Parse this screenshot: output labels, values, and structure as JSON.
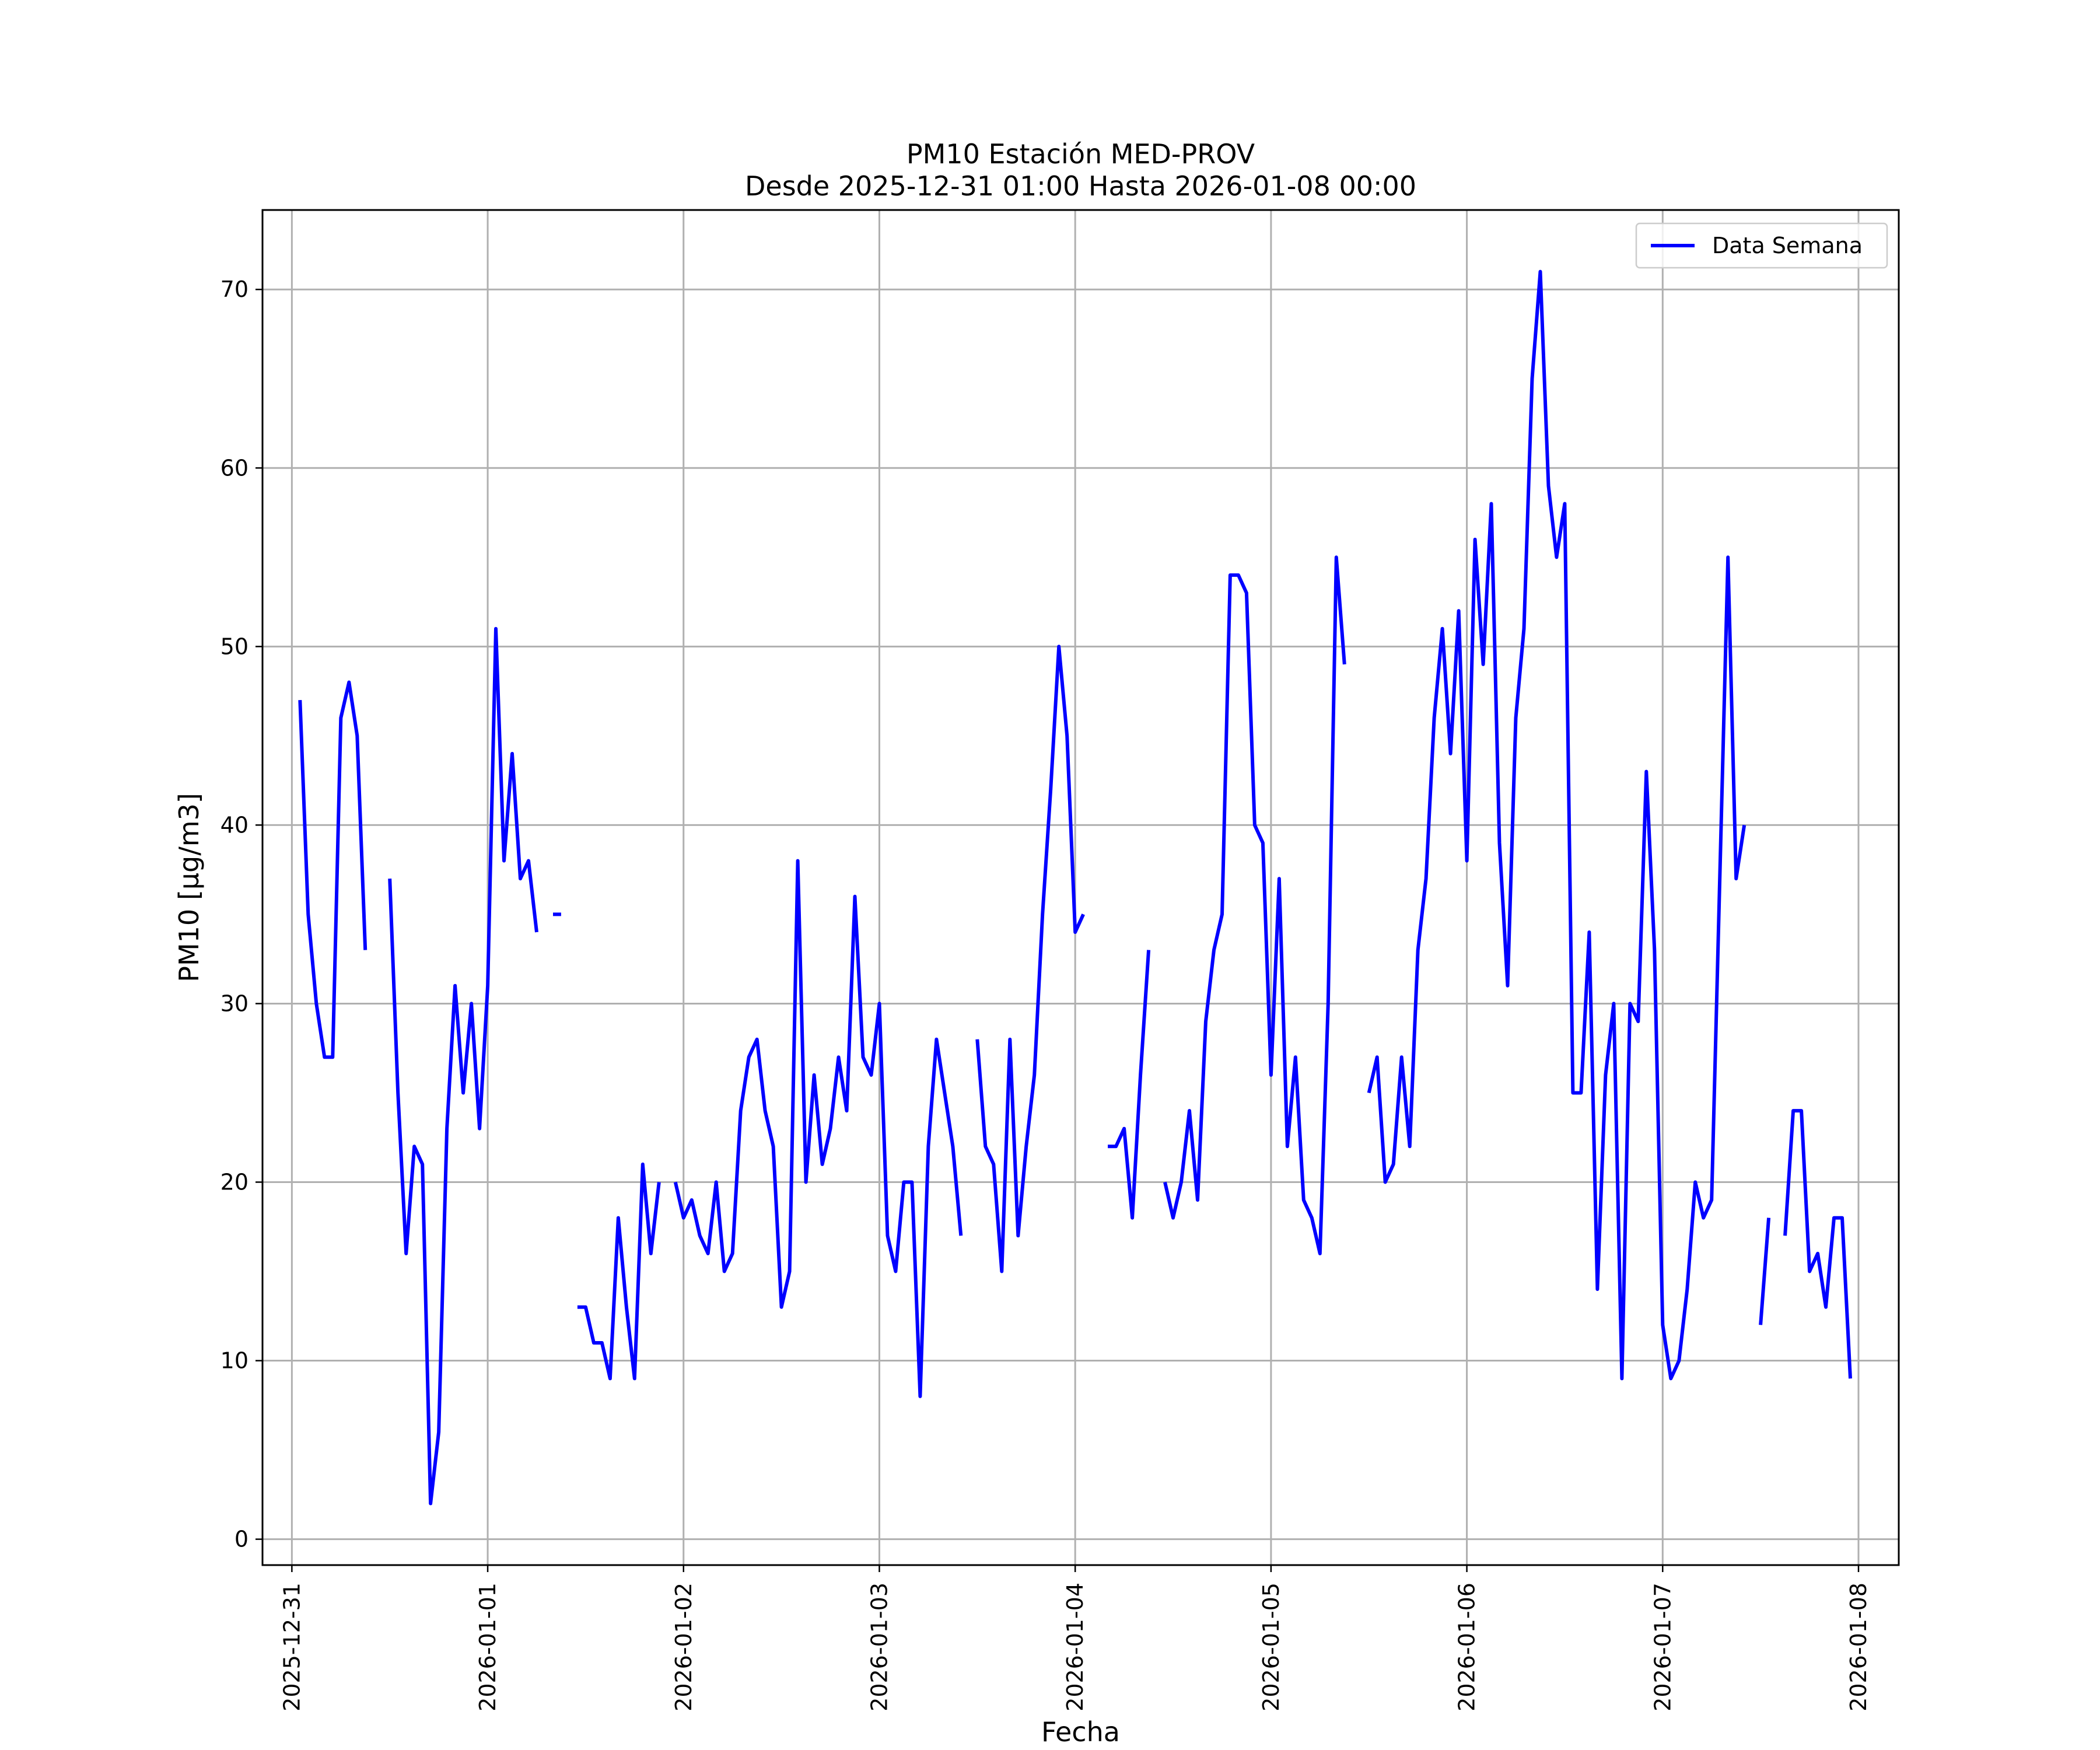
{
  "chart_data": {
    "type": "line",
    "title": "PM10 Estación MED-PROV",
    "subtitle": "Desde 2025-12-31 01:00 Hasta 2026-01-08 00:00",
    "xlabel": "Fecha",
    "ylabel": "PM10 [μg/m3]",
    "xlim": [
      "2025-12-30T20:24",
      "2026-01-08T04:56"
    ],
    "ylim": [
      -1.45,
      74.45
    ],
    "grid": true,
    "legend_position": "top-right",
    "x_tick_labels": [
      "2025-12-31",
      "2026-01-01",
      "2026-01-02",
      "2026-01-03",
      "2026-01-04",
      "2026-01-05",
      "2026-01-06",
      "2026-01-07",
      "2026-01-08"
    ],
    "y_ticks": [
      0,
      10,
      20,
      30,
      40,
      50,
      60,
      70
    ],
    "series": [
      {
        "name": "Data Semana",
        "color": "#0000ff",
        "start": "2025-12-31T01:00",
        "step_hours": 1,
        "values": [
          47,
          35,
          30,
          27,
          27,
          46,
          48,
          45,
          33,
          null,
          null,
          37,
          25,
          16,
          22,
          21,
          2,
          6,
          23,
          31,
          25,
          30,
          23,
          31,
          51,
          38,
          44,
          37,
          38,
          34,
          null,
          35,
          35,
          null,
          13,
          13,
          11,
          11,
          9,
          18,
          13,
          9,
          21,
          16,
          20,
          null,
          20,
          18,
          19,
          17,
          16,
          20,
          15,
          16,
          24,
          27,
          28,
          24,
          22,
          13,
          15,
          38,
          20,
          26,
          21,
          23,
          27,
          24,
          36,
          27,
          26,
          30,
          17,
          15,
          20,
          20,
          8,
          22,
          28,
          25,
          22,
          17,
          null,
          28,
          22,
          21,
          15,
          28,
          17,
          22,
          26,
          35,
          42,
          50,
          45,
          34,
          35,
          null,
          null,
          22,
          22,
          23,
          18,
          26,
          33,
          null,
          20,
          18,
          20,
          24,
          19,
          29,
          33,
          35,
          54,
          54,
          53,
          40,
          39,
          26,
          37,
          22,
          27,
          19,
          18,
          16,
          30,
          55,
          49,
          null,
          null,
          25,
          27,
          20,
          21,
          27,
          22,
          33,
          37,
          46,
          51,
          44,
          52,
          38,
          56,
          49,
          58,
          39,
          31,
          46,
          51,
          65,
          71,
          59,
          55,
          58,
          25,
          25,
          34,
          14,
          26,
          30,
          9,
          30,
          29,
          43,
          33,
          12,
          9,
          10,
          14,
          20,
          18,
          19,
          37,
          55,
          37,
          40,
          null,
          12,
          18,
          null,
          17,
          24,
          24,
          15,
          16,
          13,
          18,
          18,
          9
        ]
      }
    ]
  }
}
